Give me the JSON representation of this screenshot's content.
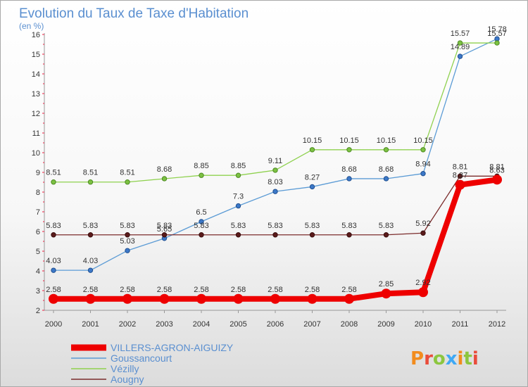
{
  "chart_data": {
    "type": "line",
    "title": "Evolution du Taux de Taxe d'Habitation",
    "subtitle": "(en %)",
    "x": [
      "2000",
      "2001",
      "2002",
      "2003",
      "2004",
      "2005",
      "2006",
      "2007",
      "2008",
      "2009",
      "2010",
      "2011",
      "2012"
    ],
    "ylim": [
      2,
      16
    ],
    "yticks": [
      2,
      3,
      4,
      5,
      6,
      7,
      8,
      9,
      10,
      11,
      12,
      13,
      14,
      15,
      16
    ],
    "grid": false,
    "legend_position": "bottom-left",
    "series": [
      {
        "name": "VILLERS-AGRON-AIGUIZY",
        "color": "#ee0000",
        "values": [
          2.58,
          2.58,
          2.58,
          2.58,
          2.58,
          2.58,
          2.58,
          2.58,
          2.58,
          2.85,
          2.92,
          8.37,
          8.63
        ],
        "labels": [
          "2.58",
          "2.58",
          "2.58",
          "2.58",
          "2.58",
          "2.58",
          "2.58",
          "2.58",
          "2.58",
          "2.85",
          "2.92",
          "8.37",
          "8.63"
        ]
      },
      {
        "name": "Goussancourt",
        "color": "#5b9bd5",
        "values": [
          4.03,
          4.03,
          5.03,
          5.65,
          6.5,
          7.3,
          8.03,
          8.27,
          8.68,
          8.68,
          8.94,
          14.89,
          15.78
        ],
        "labels": [
          "4.03",
          "4.03",
          "5.03",
          "5.65",
          "6.5",
          "7.3",
          "8.03",
          "8.27",
          "8.68",
          "8.68",
          "8.94",
          "14.89",
          "15.78"
        ]
      },
      {
        "name": "Vézilly",
        "color": "#8fd14f",
        "values": [
          8.51,
          8.51,
          8.51,
          8.68,
          8.85,
          8.85,
          9.11,
          10.15,
          10.15,
          10.15,
          10.15,
          15.57,
          15.57
        ],
        "labels": [
          "8.51",
          "8.51",
          "8.51",
          "8.68",
          "8.85",
          "8.85",
          "9.11",
          "10.15",
          "10.15",
          "10.15",
          "10.15",
          "15.57",
          "15.57"
        ]
      },
      {
        "name": "Aougny",
        "color": "#7b2c2c",
        "values": [
          5.83,
          5.83,
          5.83,
          5.83,
          5.83,
          5.83,
          5.83,
          5.83,
          5.83,
          5.83,
          5.92,
          8.81,
          8.81
        ],
        "labels": [
          "5.83",
          "5.83",
          "5.83",
          "5.83",
          "5.83",
          "5.83",
          "5.83",
          "5.83",
          "5.83",
          "5.83",
          "5.92",
          "8.81",
          "8.81"
        ]
      }
    ]
  },
  "logo": {
    "letters": [
      "P",
      "r",
      "o",
      "x",
      "i",
      "t",
      "i"
    ],
    "colors": [
      "#f28c1e",
      "#e94c3b",
      "#8cc63f",
      "#3fa9f5",
      "#f28c1e",
      "#8cc63f",
      "#e94c3b"
    ]
  }
}
